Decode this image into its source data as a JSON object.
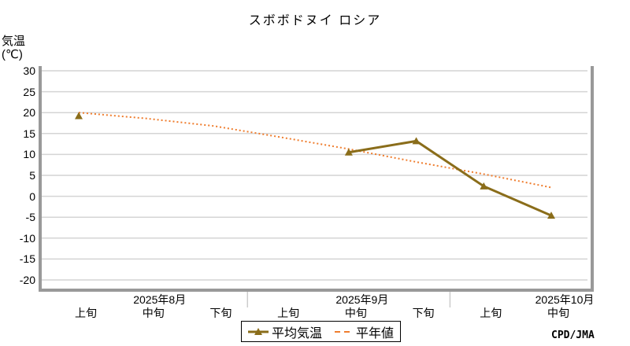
{
  "title": "スボボドヌイ ロシア",
  "y_axis": {
    "label_line1": "気温",
    "label_line2": "(℃)"
  },
  "credit": "CPD/JMA",
  "legend": {
    "avg_label": "平均気温",
    "normal_label": "平年値"
  },
  "colors": {
    "avg_line": "#8a6d1a",
    "normal_line": "#ef7d2e",
    "grid": "#d4d4d4",
    "frame": "#999999",
    "separator": "#cccccc",
    "text": "#000000"
  },
  "chart_data": {
    "type": "line",
    "title": "スボボドヌイ ロシア",
    "ylabel": "気温(℃)",
    "ylim": [
      -20,
      30
    ],
    "yticks": [
      "30",
      "25",
      "20",
      "15",
      "10",
      "5",
      "0",
      "-5",
      "-10",
      "-15",
      "-20"
    ],
    "grid": true,
    "legend_position": "bottom",
    "categories": [
      "上旬",
      "中旬",
      "下旬",
      "上旬",
      "中旬",
      "下旬",
      "上旬",
      "中旬"
    ],
    "month_groups": [
      {
        "label": "2025年8月",
        "span": [
          0,
          2
        ],
        "label_index": 1
      },
      {
        "label": "2025年9月",
        "span": [
          3,
          5
        ],
        "label_index": 4
      },
      {
        "label": "2025年10月",
        "span": [
          6,
          7
        ],
        "label_index": 7
      }
    ],
    "series": [
      {
        "name": "平均気温",
        "style": "solid",
        "marker": "triangle",
        "color": "#8a6d1a",
        "values": [
          19.2,
          null,
          null,
          null,
          10.5,
          13.2,
          2.4,
          -4.6
        ]
      },
      {
        "name": "平年値",
        "style": "dotted",
        "marker": "none",
        "color": "#ef7d2e",
        "values": [
          20.0,
          18.6,
          16.8,
          14.1,
          11.3,
          8.2,
          5.3,
          2.1
        ]
      }
    ]
  }
}
